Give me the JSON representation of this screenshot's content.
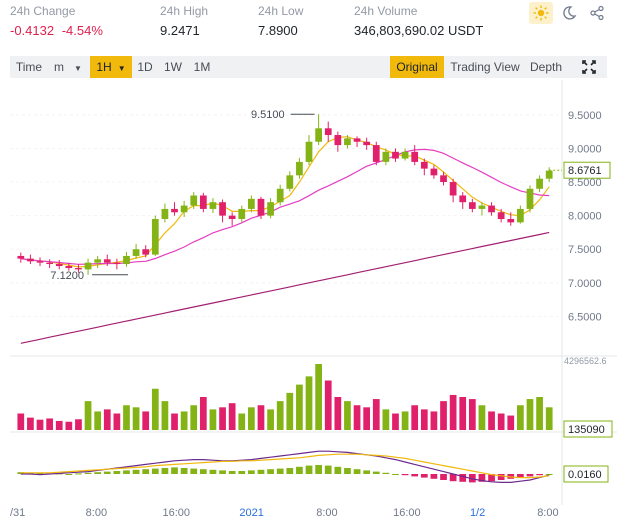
{
  "stats": {
    "change": {
      "label": "24h Change",
      "value": "-0.4132",
      "pct": "-4.54%"
    },
    "high": {
      "label": "24h High",
      "value": "9.2471"
    },
    "low": {
      "label": "24h Low",
      "value": "7.8900"
    },
    "volume": {
      "label": "24h Volume",
      "value": "346,803,690.02 USDT"
    }
  },
  "icons": [
    "sun-icon",
    "moon-icon",
    "share-icon"
  ],
  "toolbar": {
    "time": "Time",
    "m": "m",
    "h1": "1H",
    "d1": "1D",
    "w1": "1W",
    "mo1": "1M",
    "original": "Original",
    "tradingview": "Trading View",
    "depth": "Depth"
  },
  "chart_data": {
    "type": "candlestick",
    "price_axis": {
      "ticks": [
        "9.5000",
        "9.0000",
        "8.5000",
        "8.0000",
        "7.5000",
        "7.0000",
        "6.5000"
      ],
      "ylim": [
        6.0,
        9.9
      ]
    },
    "last_price": "8.6761",
    "max_label": "9.5100",
    "min_label": "7.1200",
    "volume_axis": {
      "top": "4296562.6",
      "last": "135090"
    },
    "macd_axis": {
      "last": "0.0160"
    },
    "x_ticks": [
      "/31",
      "8:00",
      "16:00",
      "2021",
      "8:00",
      "16:00",
      "1/2",
      "8:00"
    ],
    "candles": [
      [
        7.4,
        7.36,
        7.45,
        7.3
      ],
      [
        7.36,
        7.32,
        7.42,
        7.28
      ],
      [
        7.32,
        7.3,
        7.38,
        7.25
      ],
      [
        7.3,
        7.28,
        7.35,
        7.22
      ],
      [
        7.28,
        7.25,
        7.34,
        7.2
      ],
      [
        7.25,
        7.22,
        7.3,
        7.18
      ],
      [
        7.22,
        7.2,
        7.28,
        7.15
      ],
      [
        7.2,
        7.3,
        7.36,
        7.12
      ],
      [
        7.3,
        7.35,
        7.4,
        7.22
      ],
      [
        7.35,
        7.3,
        7.42,
        7.25
      ],
      [
        7.3,
        7.28,
        7.36,
        7.2
      ],
      [
        7.28,
        7.4,
        7.46,
        7.24
      ],
      [
        7.4,
        7.5,
        7.58,
        7.36
      ],
      [
        7.5,
        7.42,
        7.56,
        7.38
      ],
      [
        7.42,
        7.95,
        8.0,
        7.4
      ],
      [
        7.95,
        8.1,
        8.18,
        7.9
      ],
      [
        8.1,
        8.05,
        8.2,
        8.0
      ],
      [
        8.05,
        8.15,
        8.22,
        7.98
      ],
      [
        8.15,
        8.3,
        8.35,
        8.1
      ],
      [
        8.3,
        8.1,
        8.34,
        8.05
      ],
      [
        8.1,
        8.2,
        8.26,
        8.04
      ],
      [
        8.2,
        8.0,
        8.24,
        7.9
      ],
      [
        8.0,
        7.95,
        8.05,
        7.85
      ],
      [
        7.95,
        8.1,
        8.15,
        7.9
      ],
      [
        8.1,
        8.25,
        8.3,
        8.05
      ],
      [
        8.25,
        8.0,
        8.28,
        7.95
      ],
      [
        8.0,
        8.2,
        8.26,
        7.96
      ],
      [
        8.2,
        8.4,
        8.46,
        8.15
      ],
      [
        8.4,
        8.6,
        8.66,
        8.36
      ],
      [
        8.6,
        8.8,
        8.86,
        8.55
      ],
      [
        8.8,
        9.1,
        9.2,
        8.75
      ],
      [
        9.1,
        9.3,
        9.51,
        9.05
      ],
      [
        9.3,
        9.2,
        9.4,
        9.1
      ],
      [
        9.2,
        9.05,
        9.25,
        8.95
      ],
      [
        9.05,
        9.15,
        9.2,
        9.0
      ],
      [
        9.15,
        9.1,
        9.18,
        9.02
      ],
      [
        9.1,
        9.05,
        9.16,
        8.98
      ],
      [
        9.05,
        8.8,
        9.1,
        8.75
      ],
      [
        8.8,
        8.95,
        9.0,
        8.75
      ],
      [
        8.95,
        8.85,
        9.0,
        8.8
      ],
      [
        8.85,
        8.95,
        9.0,
        8.82
      ],
      [
        8.95,
        8.8,
        9.05,
        8.75
      ],
      [
        8.8,
        8.7,
        8.85,
        8.6
      ],
      [
        8.7,
        8.6,
        8.75,
        8.55
      ],
      [
        8.6,
        8.5,
        8.65,
        8.45
      ],
      [
        8.5,
        8.3,
        8.55,
        8.2
      ],
      [
        8.3,
        8.2,
        8.35,
        8.1
      ],
      [
        8.2,
        8.1,
        8.25,
        8.05
      ],
      [
        8.1,
        8.15,
        8.2,
        8.0
      ],
      [
        8.15,
        8.05,
        8.2,
        8.0
      ],
      [
        8.05,
        7.95,
        8.1,
        7.9
      ],
      [
        7.95,
        7.9,
        8.05,
        7.85
      ],
      [
        7.9,
        8.1,
        8.15,
        7.88
      ],
      [
        8.1,
        8.4,
        8.45,
        8.05
      ],
      [
        8.4,
        8.55,
        8.6,
        8.35
      ],
      [
        8.55,
        8.67,
        8.72,
        8.5
      ]
    ],
    "volume": [
      40,
      30,
      25,
      28,
      22,
      20,
      26,
      70,
      45,
      50,
      40,
      60,
      55,
      45,
      100,
      70,
      40,
      45,
      60,
      80,
      50,
      55,
      65,
      40,
      55,
      60,
      50,
      70,
      90,
      110,
      130,
      160,
      120,
      80,
      70,
      60,
      55,
      75,
      50,
      40,
      45,
      60,
      50,
      45,
      70,
      85,
      80,
      75,
      60,
      45,
      40,
      35,
      60,
      75,
      80,
      55
    ],
    "macd_hist": [
      0.03,
      0.02,
      0.02,
      0.01,
      0.01,
      0.0,
      0.01,
      0.02,
      0.03,
      0.04,
      0.05,
      0.06,
      0.07,
      0.08,
      0.09,
      0.1,
      0.11,
      0.1,
      0.09,
      0.08,
      0.07,
      0.06,
      0.05,
      0.05,
      0.06,
      0.07,
      0.08,
      0.09,
      0.1,
      0.12,
      0.14,
      0.15,
      0.14,
      0.12,
      0.1,
      0.08,
      0.06,
      0.04,
      0.02,
      0.0,
      -0.02,
      -0.04,
      -0.06,
      -0.08,
      -0.1,
      -0.12,
      -0.13,
      -0.14,
      -0.13,
      -0.12,
      -0.1,
      -0.08,
      -0.06,
      -0.04,
      -0.02,
      0.0
    ],
    "macd_dif": [
      0.0,
      0.0,
      -0.01,
      0.0,
      0.01,
      0.02,
      0.03,
      0.04,
      0.06,
      0.08,
      0.1,
      0.12,
      0.14,
      0.16,
      0.18,
      0.2,
      0.22,
      0.23,
      0.24,
      0.24,
      0.23,
      0.22,
      0.22,
      0.23,
      0.24,
      0.26,
      0.28,
      0.3,
      0.32,
      0.34,
      0.36,
      0.38,
      0.38,
      0.37,
      0.36,
      0.34,
      0.32,
      0.3,
      0.27,
      0.24,
      0.2,
      0.16,
      0.12,
      0.08,
      0.04,
      0.0,
      -0.04,
      -0.08,
      -0.11,
      -0.13,
      -0.14,
      -0.14,
      -0.12,
      -0.1,
      -0.06,
      -0.02
    ],
    "macd_dea": [
      0.02,
      0.02,
      0.02,
      0.02,
      0.03,
      0.04,
      0.05,
      0.06,
      0.07,
      0.08,
      0.09,
      0.1,
      0.11,
      0.12,
      0.14,
      0.15,
      0.16,
      0.17,
      0.18,
      0.19,
      0.2,
      0.21,
      0.21,
      0.22,
      0.22,
      0.23,
      0.24,
      0.25,
      0.26,
      0.27,
      0.29,
      0.31,
      0.32,
      0.33,
      0.33,
      0.33,
      0.32,
      0.31,
      0.3,
      0.28,
      0.26,
      0.23,
      0.2,
      0.17,
      0.14,
      0.11,
      0.08,
      0.05,
      0.02,
      -0.01,
      -0.03,
      -0.05,
      -0.06,
      -0.06,
      -0.05,
      -0.03
    ],
    "colors": {
      "up": "#84b316",
      "down": "#e0206a",
      "ma7": "#f0b90b",
      "ma25": "#e43fc4",
      "ma99": "#a32071",
      "accent": "#f0b90b"
    }
  }
}
